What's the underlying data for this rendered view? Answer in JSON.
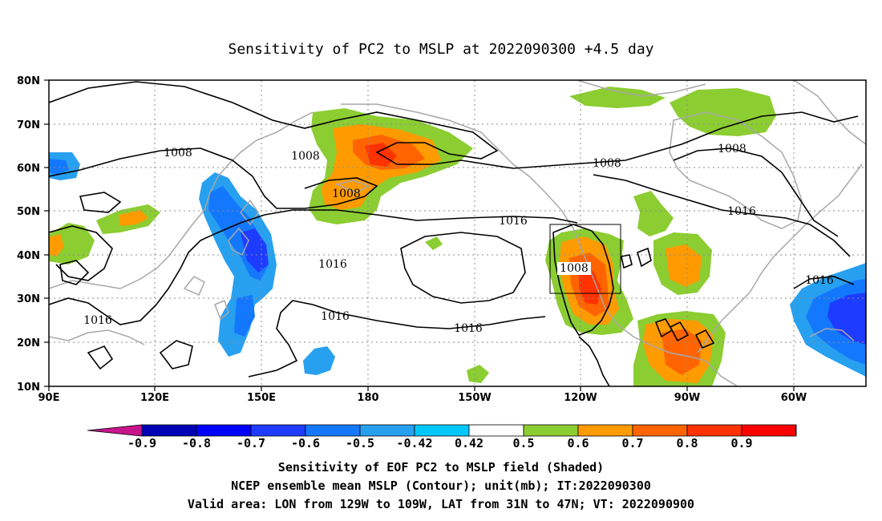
{
  "title": "Sensitivity of PC2 to MSLP at 2022090300 +4.5 day",
  "map": {
    "lat_labels": [
      "80N",
      "70N",
      "60N",
      "50N",
      "40N",
      "30N",
      "20N",
      "10N"
    ],
    "lon_labels": [
      "90E",
      "120E",
      "150E",
      "180",
      "150W",
      "120W",
      "90W",
      "60W"
    ],
    "contour_labels": [
      "1008",
      "1008",
      "1008",
      "1008",
      "1008",
      "1016",
      "1016",
      "1016",
      "1016",
      "1016",
      "1016",
      "1016"
    ],
    "valid_area_box": {
      "lon_min": "129W",
      "lon_max": "109W",
      "lat_min": "31N",
      "lat_max": "47N"
    }
  },
  "colorbar": {
    "labels": [
      "-0.9",
      "-0.8",
      "-0.7",
      "-0.6",
      "-0.5",
      "-0.42",
      "0.42",
      "0.5",
      "0.6",
      "0.7",
      "0.8",
      "0.9"
    ],
    "colors": [
      "#c8148c",
      "#0000b4",
      "#0000ff",
      "#1e3cff",
      "#1478ff",
      "#28a0f0",
      "#00c8ff",
      "#ffffff",
      "#8ccd32",
      "#ff9b00",
      "#ff6400",
      "#ff3200",
      "#ff0000",
      "#ffa0c8"
    ]
  },
  "caption": {
    "line1": "Sensitivity of EOF PC2 to MSLP field (Shaded)",
    "line2": "NCEP ensemble mean MSLP (Contour); unit(mb); IT:2022090300",
    "line3": "Valid area: LON from 129W to 109W, LAT from 31N to 47N; VT: 2022090900"
  }
}
